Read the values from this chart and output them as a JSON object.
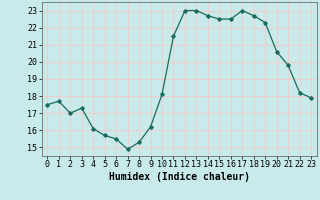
{
  "x": [
    0,
    1,
    2,
    3,
    4,
    5,
    6,
    7,
    8,
    9,
    10,
    11,
    12,
    13,
    14,
    15,
    16,
    17,
    18,
    19,
    20,
    21,
    22,
    23
  ],
  "y": [
    17.5,
    17.7,
    17.0,
    17.3,
    16.1,
    15.7,
    15.5,
    14.9,
    15.3,
    16.2,
    18.1,
    21.5,
    23.0,
    23.0,
    22.7,
    22.5,
    22.5,
    23.0,
    22.7,
    22.3,
    20.6,
    19.8,
    18.2,
    17.9
  ],
  "xlabel": "Humidex (Indice chaleur)",
  "xlim": [
    -0.5,
    23.5
  ],
  "ylim": [
    14.5,
    23.5
  ],
  "yticks": [
    15,
    16,
    17,
    18,
    19,
    20,
    21,
    22,
    23
  ],
  "xticks": [
    0,
    1,
    2,
    3,
    4,
    5,
    6,
    7,
    8,
    9,
    10,
    11,
    12,
    13,
    14,
    15,
    16,
    17,
    18,
    19,
    20,
    21,
    22,
    23
  ],
  "line_color": "#1a6b5a",
  "marker": "D",
  "marker_size": 1.8,
  "bg_color": "#c8eaea",
  "grid_color": "#f5c8c8",
  "title_fontsize": 7,
  "xlabel_fontsize": 7,
  "tick_fontsize": 6,
  "line_width": 0.9
}
